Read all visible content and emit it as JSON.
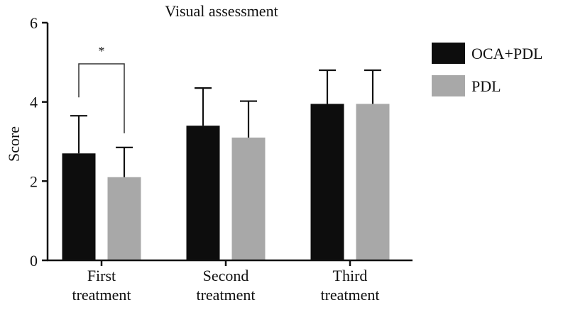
{
  "chart_data": {
    "type": "bar",
    "title": "Visual assessment",
    "xlabel": "",
    "ylabel": "Score",
    "ylim": [
      0,
      6
    ],
    "yticks": [
      "0",
      "2",
      "4",
      "6"
    ],
    "categories": [
      [
        "First",
        "treatment"
      ],
      [
        "Second",
        "treatment"
      ],
      [
        "Third",
        "treatment"
      ]
    ],
    "series": [
      {
        "name": "OCA+PDL",
        "color": "#0d0d0d",
        "values": [
          2.7,
          3.4,
          3.95
        ],
        "errors": [
          0.95,
          0.95,
          0.85
        ]
      },
      {
        "name": "PDL",
        "color": "#a8a8a8",
        "values": [
          2.1,
          3.1,
          3.95
        ],
        "errors": [
          0.75,
          0.92,
          0.85
        ]
      }
    ],
    "annotations": [
      {
        "type": "significance",
        "text": "*",
        "category_index": 0
      }
    ],
    "legend_position": "right",
    "grid": false
  }
}
